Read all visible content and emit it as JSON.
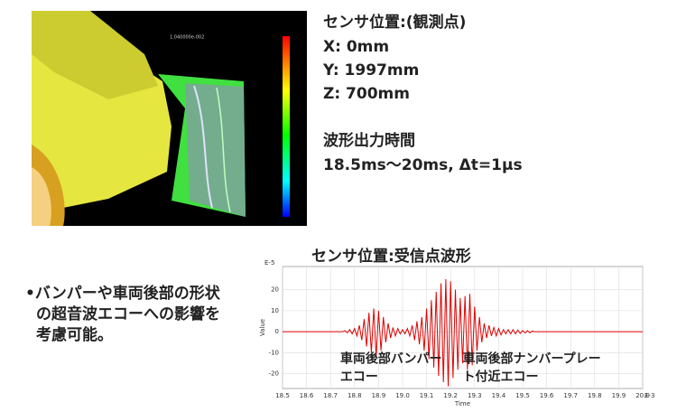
{
  "sensor_position": {
    "heading": "センサ位置:(観測点)",
    "lines": [
      "X:  0mm",
      "Y:  1997mm",
      "Z:  700mm"
    ]
  },
  "output_time": {
    "heading": "波形出力時間",
    "value": "18.5ms〜20ms, Δt=1μs"
  },
  "note_lines": [
    "•バンパーや車両後部の形状",
    "の超音波エコーへの影響を",
    "考慮可能。"
  ],
  "chart_data": {
    "type": "line",
    "title": "センサ位置:受信点波形",
    "x_label": "Time",
    "y_label": "Value",
    "x_exponent": "E-3",
    "y_exponent": "E-5",
    "annotations": [
      {
        "lines": [
          "車両後部バンパー",
          "エコー"
        ],
        "x": 18.74,
        "y": -13
      },
      {
        "lines": [
          "車両後部ナンバープレー",
          "ト付近エコー"
        ],
        "x": 19.25,
        "y": -13
      }
    ],
    "x": [
      18.5,
      18.75,
      18.76,
      18.77,
      18.78,
      18.79,
      18.8,
      18.81,
      18.82,
      18.83,
      18.84,
      18.85,
      18.86,
      18.87,
      18.88,
      18.89,
      18.9,
      18.91,
      18.92,
      18.93,
      18.94,
      18.95,
      18.96,
      18.97,
      18.98,
      18.99,
      19.0,
      19.01,
      19.02,
      19.03,
      19.04,
      19.05,
      19.06,
      19.07,
      19.08,
      19.09,
      19.1,
      19.11,
      19.12,
      19.13,
      19.14,
      19.15,
      19.16,
      19.17,
      19.18,
      19.19,
      19.2,
      19.21,
      19.22,
      19.23,
      19.24,
      19.25,
      19.26,
      19.27,
      19.28,
      19.29,
      19.3,
      19.31,
      19.32,
      19.33,
      19.34,
      19.35,
      19.36,
      19.37,
      19.38,
      19.39,
      19.4,
      19.41,
      19.42,
      19.43,
      19.44,
      19.45,
      19.46,
      19.47,
      19.48,
      19.49,
      19.5,
      19.51,
      19.52,
      19.53,
      19.54,
      19.55,
      20.0
    ],
    "series": [
      {
        "color": "#e00000",
        "values": [
          0,
          0,
          0.5,
          -0.5,
          1,
          -1,
          1.5,
          -2,
          3,
          -4,
          6,
          -7,
          9,
          -10,
          11,
          -12,
          10,
          -9,
          7,
          -5,
          4,
          -3,
          2,
          -2,
          1.5,
          -1,
          1,
          -1,
          1.5,
          -2,
          3,
          -4,
          5,
          -6,
          7,
          -9,
          11,
          -13,
          15,
          -17,
          19,
          -21,
          23,
          -24,
          25,
          -26,
          24,
          -22,
          20,
          -18,
          16,
          -15,
          17,
          -18,
          18,
          -16,
          12,
          -9,
          7,
          -5,
          4,
          -3,
          3,
          -2,
          2,
          -2,
          1.5,
          -1.5,
          1,
          -1,
          1,
          -1,
          1,
          -1,
          0.8,
          -0.8,
          0.6,
          -0.6,
          0.5,
          -0.5,
          0.3,
          0,
          0
        ]
      }
    ],
    "xlim": [
      18.5,
      20
    ],
    "ylim": [
      -27,
      31
    ],
    "xticks": [
      18.5,
      18.6,
      18.7,
      18.8,
      18.9,
      {
        "value": 19,
        "label": "19.0"
      },
      19.1,
      19.2,
      19.3,
      19.4,
      19.5,
      19.6,
      19.7,
      19.8,
      19.9,
      {
        "value": 20,
        "label": "20.0"
      }
    ],
    "yticks": [
      -20,
      -10,
      0,
      10,
      20
    ],
    "grid": true
  }
}
